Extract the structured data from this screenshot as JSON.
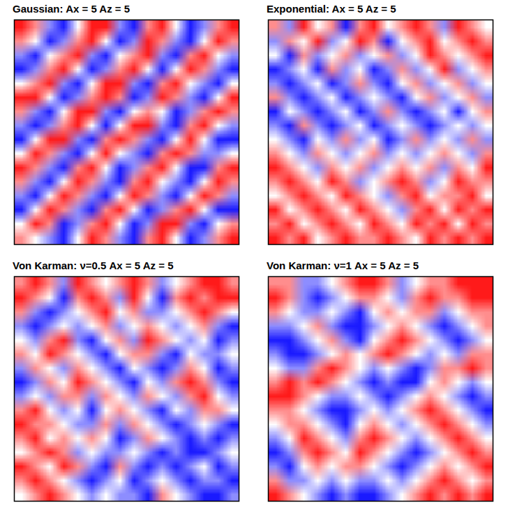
{
  "chart_data": [
    {
      "type": "heatmap",
      "title": "Gaussian: Ax = 5  Az = 5",
      "tick_labels": false,
      "zlim": [
        -2,
        2
      ],
      "color_range": [
        "#1a1aff",
        "#ffffff",
        "#ff1a1a"
      ],
      "cells": [
        [
          2,
          1,
          -1,
          -2,
          0,
          2,
          2,
          -1,
          -2,
          1,
          2,
          0,
          -2,
          -1,
          1,
          2
        ],
        [
          1,
          0,
          -2,
          -1,
          1,
          2,
          0,
          -2,
          -1,
          2,
          1,
          -1,
          -2,
          0,
          2,
          1
        ],
        [
          -1,
          -2,
          0,
          1,
          2,
          -1,
          -2,
          0,
          1,
          2,
          -1,
          -2,
          1,
          2,
          0,
          -1
        ],
        [
          -2,
          -1,
          1,
          2,
          0,
          -2,
          -1,
          1,
          2,
          0,
          -2,
          0,
          2,
          1,
          -1,
          -2
        ],
        [
          0,
          1,
          2,
          -1,
          -2,
          0,
          2,
          2,
          -1,
          -2,
          1,
          2,
          0,
          -1,
          -2,
          0
        ],
        [
          2,
          2,
          0,
          -2,
          -1,
          1,
          2,
          1,
          -2,
          -1,
          2,
          1,
          -1,
          -2,
          0,
          2
        ],
        [
          1,
          -1,
          -2,
          0,
          2,
          2,
          -1,
          -2,
          0,
          1,
          0,
          -2,
          -1,
          1,
          2,
          1
        ],
        [
          -1,
          -2,
          -1,
          1,
          2,
          0,
          -2,
          0,
          2,
          2,
          -1,
          -2,
          1,
          2,
          0,
          -1
        ],
        [
          -2,
          0,
          2,
          2,
          -1,
          -2,
          1,
          2,
          1,
          -1,
          -2,
          0,
          2,
          0,
          -2,
          -2
        ],
        [
          0,
          2,
          1,
          -1,
          -2,
          0,
          2,
          0,
          -1,
          -2,
          1,
          2,
          1,
          -1,
          -1,
          0
        ],
        [
          2,
          1,
          -1,
          -2,
          1,
          2,
          0,
          -2,
          -1,
          1,
          2,
          0,
          -2,
          -2,
          1,
          2
        ],
        [
          1,
          -1,
          -2,
          0,
          2,
          1,
          -1,
          -2,
          1,
          2,
          0,
          -1,
          -2,
          0,
          2,
          1
        ],
        [
          -1,
          -2,
          0,
          2,
          1,
          -1,
          -2,
          0,
          2,
          1,
          -1,
          -2,
          0,
          2,
          1,
          -1
        ],
        [
          -2,
          0,
          2,
          1,
          -1,
          -2,
          1,
          2,
          0,
          -2,
          -1,
          1,
          2,
          0,
          -2,
          -2
        ],
        [
          0,
          2,
          1,
          -2,
          -1,
          1,
          2,
          0,
          -2,
          -1,
          2,
          2,
          -1,
          -2,
          0,
          1
        ],
        [
          1,
          0,
          -1,
          -2,
          0,
          2,
          1,
          -1,
          -2,
          1,
          2,
          0,
          -2,
          -1,
          1,
          2
        ]
      ]
    },
    {
      "type": "heatmap",
      "title": "Exponential: Ax = 5  Az = 5",
      "tick_labels": false,
      "zlim": [
        -2,
        2
      ],
      "color_range": [
        "#1a1aff",
        "#ffffff",
        "#ff1a1a"
      ],
      "cells": [
        [
          1,
          -1,
          2,
          0,
          1,
          -2,
          1,
          2,
          0,
          1,
          2,
          1,
          -1,
          2,
          1,
          0
        ],
        [
          -1,
          1,
          0,
          2,
          -1,
          0,
          2,
          1,
          -2,
          0,
          1,
          2,
          0,
          1,
          2,
          1
        ],
        [
          0,
          -2,
          1,
          -1,
          0,
          1,
          -1,
          0,
          1,
          -1,
          0,
          2,
          1,
          0,
          1,
          2
        ],
        [
          -2,
          -1,
          0,
          -2,
          1,
          -1,
          0,
          -2,
          -1,
          1,
          -1,
          0,
          2,
          -1,
          0,
          1
        ],
        [
          -1,
          -2,
          -1,
          0,
          -2,
          -1,
          1,
          -1,
          -2,
          0,
          1,
          -1,
          0,
          1,
          -1,
          0
        ],
        [
          1,
          -1,
          -2,
          -1,
          0,
          -2,
          -1,
          0,
          -1,
          -2,
          0,
          1,
          -1,
          0,
          1,
          -1
        ],
        [
          -2,
          0,
          -1,
          -2,
          -1,
          0,
          -2,
          -1,
          1,
          -1,
          -2,
          -1,
          0,
          -2,
          0,
          1
        ],
        [
          -1,
          -2,
          1,
          -1,
          -2,
          -1,
          0,
          -2,
          -1,
          0,
          -1,
          -2,
          -1,
          0,
          -1,
          0
        ],
        [
          0,
          -1,
          -2,
          0,
          -1,
          1,
          -1,
          0,
          -2,
          -1,
          1,
          -1,
          0,
          -1,
          1,
          -1
        ],
        [
          1,
          0,
          -1,
          1,
          0,
          -1,
          0,
          1,
          -1,
          0,
          -1,
          0,
          1,
          0,
          -1,
          1
        ],
        [
          2,
          1,
          0,
          -1,
          1,
          0,
          1,
          -1,
          0,
          1,
          0,
          1,
          -1,
          1,
          0,
          2
        ],
        [
          1,
          2,
          1,
          0,
          2,
          1,
          -1,
          0,
          1,
          2,
          1,
          -1,
          0,
          2,
          1,
          1
        ],
        [
          0,
          1,
          2,
          1,
          0,
          2,
          1,
          0,
          -1,
          1,
          2,
          0,
          1,
          1,
          2,
          0
        ],
        [
          2,
          0,
          1,
          2,
          1,
          0,
          2,
          1,
          0,
          -1,
          1,
          2,
          0,
          2,
          1,
          2
        ],
        [
          1,
          2,
          0,
          1,
          2,
          1,
          0,
          2,
          1,
          0,
          2,
          1,
          2,
          0,
          2,
          1
        ],
        [
          2,
          1,
          2,
          0,
          1,
          2,
          1,
          1,
          2,
          1,
          0,
          2,
          1,
          2,
          1,
          2
        ]
      ]
    },
    {
      "type": "heatmap",
      "title": "Von Karman:  ν=0.5  Ax = 5  Az = 5",
      "tick_labels": false,
      "zlim": [
        -2,
        2
      ],
      "color_range": [
        "#1a1aff",
        "#ffffff",
        "#ff1a1a"
      ],
      "cells": [
        [
          1,
          2,
          1,
          -1,
          2,
          1,
          0,
          1,
          2,
          1,
          -1,
          0,
          1,
          2,
          2,
          1
        ],
        [
          2,
          1,
          0,
          -2,
          1,
          2,
          1,
          -1,
          2,
          0,
          -2,
          1,
          2,
          1,
          2,
          2
        ],
        [
          1,
          -1,
          -2,
          -1,
          0,
          1,
          2,
          0,
          1,
          -1,
          -1,
          0,
          1,
          2,
          1,
          0
        ],
        [
          -1,
          -2,
          -1,
          0,
          -1,
          0,
          1,
          -1,
          0,
          1,
          0,
          -1,
          0,
          1,
          -1,
          -2
        ],
        [
          0,
          -1,
          1,
          2,
          -1,
          -2,
          0,
          1,
          -1,
          2,
          1,
          0,
          -1,
          0,
          -2,
          -1
        ],
        [
          1,
          0,
          2,
          1,
          0,
          -1,
          -2,
          0,
          1,
          1,
          -1,
          -2,
          0,
          -1,
          -1,
          0
        ],
        [
          -1,
          1,
          0,
          -1,
          1,
          0,
          -1,
          -2,
          0,
          -1,
          -2,
          -1,
          1,
          0,
          -2,
          -1
        ],
        [
          -2,
          -1,
          1,
          0,
          2,
          1,
          0,
          -1,
          -2,
          0,
          -1,
          1,
          2,
          1,
          -1,
          -2
        ],
        [
          -1,
          0,
          -1,
          1,
          1,
          -1,
          1,
          0,
          -1,
          1,
          0,
          -1,
          1,
          2,
          0,
          -1
        ],
        [
          1,
          2,
          0,
          -1,
          0,
          -2,
          0,
          1,
          0,
          -1,
          -2,
          0,
          -1,
          1,
          1,
          0
        ],
        [
          2,
          1,
          1,
          0,
          -1,
          -1,
          1,
          -1,
          1,
          0,
          -1,
          -2,
          -1,
          0,
          -1,
          -2
        ],
        [
          1,
          2,
          0,
          1,
          0,
          1,
          0,
          -2,
          -1,
          1,
          0,
          -1,
          -2,
          -1,
          -2,
          -1
        ],
        [
          0,
          1,
          2,
          1,
          -1,
          0,
          -1,
          -1,
          0,
          -1,
          -2,
          -1,
          -2,
          -2,
          -1,
          0
        ],
        [
          2,
          1,
          0,
          2,
          1,
          -1,
          -2,
          1,
          -1,
          -2,
          -1,
          -2,
          -1,
          0,
          -2,
          -1
        ],
        [
          1,
          2,
          1,
          0,
          -1,
          -2,
          -1,
          0,
          -2,
          -1,
          0,
          -1,
          -2,
          -1,
          -1,
          -2
        ],
        [
          0,
          1,
          2,
          1,
          0,
          -1,
          0,
          -1,
          -1,
          -2,
          1,
          0,
          -1,
          -2,
          -2,
          -1
        ]
      ]
    },
    {
      "type": "heatmap",
      "title": "Von Karman:  ν=1  Ax = 5  Az = 5",
      "tick_labels": false,
      "zlim": [
        -2,
        2
      ],
      "color_range": [
        "#1a1aff",
        "#ffffff",
        "#ff1a1a"
      ],
      "cells": [
        [
          1,
          1,
          -1,
          -1,
          0,
          1,
          2,
          2,
          1,
          -1,
          0,
          1,
          1,
          2,
          2,
          2
        ],
        [
          2,
          1,
          -1,
          -2,
          -1,
          0,
          1,
          1,
          0,
          -1,
          1,
          2,
          1,
          1,
          2,
          2
        ],
        [
          1,
          0,
          -1,
          -1,
          0,
          -1,
          -2,
          0,
          1,
          0,
          1,
          1,
          -1,
          0,
          1,
          1
        ],
        [
          -1,
          -1,
          0,
          1,
          -1,
          -2,
          -2,
          -1,
          0,
          1,
          0,
          -1,
          -2,
          -1,
          0,
          1
        ],
        [
          -2,
          -2,
          -1,
          0,
          1,
          -1,
          -2,
          0,
          1,
          2,
          1,
          0,
          -1,
          -2,
          -1,
          0
        ],
        [
          -1,
          -2,
          -2,
          -1,
          0,
          1,
          0,
          1,
          2,
          1,
          0,
          -1,
          0,
          -1,
          1,
          1
        ],
        [
          0,
          -1,
          -1,
          1,
          2,
          1,
          0,
          -1,
          0,
          -1,
          -2,
          -1,
          1,
          1,
          2,
          1
        ],
        [
          1,
          2,
          1,
          2,
          1,
          0,
          -1,
          -2,
          -1,
          -2,
          -2,
          0,
          1,
          0,
          -1,
          0
        ],
        [
          2,
          2,
          1,
          0,
          -1,
          -1,
          0,
          -1,
          -2,
          -1,
          0,
          1,
          0,
          -1,
          -2,
          -1
        ],
        [
          1,
          1,
          0,
          -1,
          -2,
          -2,
          -1,
          0,
          -1,
          0,
          1,
          2,
          1,
          0,
          -1,
          -2
        ],
        [
          0,
          1,
          1,
          0,
          -1,
          -2,
          0,
          1,
          0,
          -1,
          0,
          1,
          2,
          1,
          0,
          -1
        ],
        [
          -1,
          0,
          2,
          1,
          0,
          -1,
          1,
          2,
          1,
          0,
          -1,
          0,
          1,
          2,
          1,
          0
        ],
        [
          -2,
          -1,
          1,
          2,
          1,
          0,
          2,
          1,
          0,
          -1,
          -2,
          -1,
          0,
          1,
          2,
          1
        ],
        [
          -1,
          -2,
          0,
          1,
          0,
          1,
          1,
          0,
          -1,
          -2,
          -1,
          0,
          1,
          0,
          1,
          2
        ],
        [
          1,
          -1,
          -1,
          0,
          -1,
          0,
          -1,
          -1,
          0,
          -1,
          0,
          1,
          2,
          1,
          0,
          1
        ],
        [
          2,
          1,
          0,
          -1,
          -2,
          -1,
          -2,
          -2,
          -1,
          0,
          1,
          2,
          1,
          2,
          1,
          2
        ]
      ]
    }
  ]
}
